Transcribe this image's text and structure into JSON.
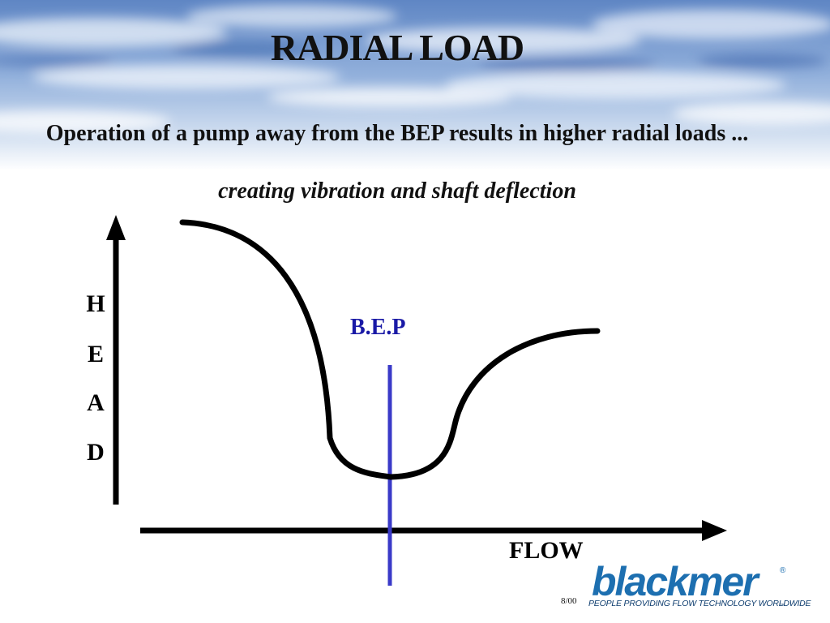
{
  "slide": {
    "title": "RADIAL LOAD",
    "subtitle": "Operation of a pump away from the BEP results in higher radial loads ...",
    "subtitle_italic": "creating vibration and shaft deflection",
    "date": "8/00"
  },
  "diagram": {
    "y_axis_letters": [
      "H",
      "E",
      "A",
      "D"
    ],
    "x_axis_label": "FLOW",
    "bep_label": "B.E.P",
    "curve_color": "#000000",
    "bep_line_color": "#3a3ac8",
    "bep_label_color": "#1a1aa6"
  },
  "logo": {
    "word": "blackmer",
    "registered": "®",
    "tagline": "PEOPLE PROVIDING FLOW TECHNOLOGY WORLDWIDE",
    "trademark": "™",
    "color": "#1d6fb0"
  }
}
